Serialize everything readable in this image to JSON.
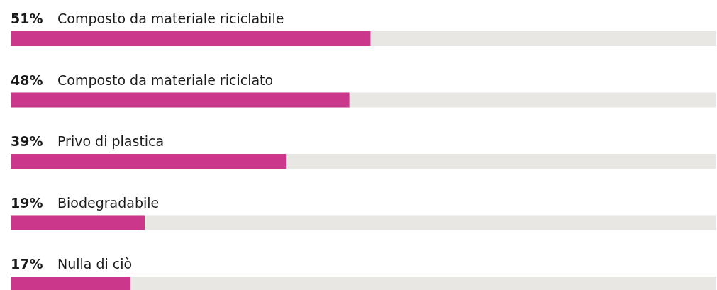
{
  "chart_data": {
    "type": "bar",
    "orientation": "horizontal",
    "categories": [
      "Composto da materiale riciclabile",
      "Composto da materiale riciclato",
      "Privo di plastica",
      "Biodegradabile",
      "Nulla di ciò"
    ],
    "xlim": [
      0,
      100
    ],
    "series": [
      {
        "color": "#cb378b",
        "values": [
          51,
          48,
          39,
          19,
          17
        ],
        "value_labels": [
          "51%",
          "48%",
          "39%",
          "19%",
          "17%"
        ]
      }
    ]
  }
}
